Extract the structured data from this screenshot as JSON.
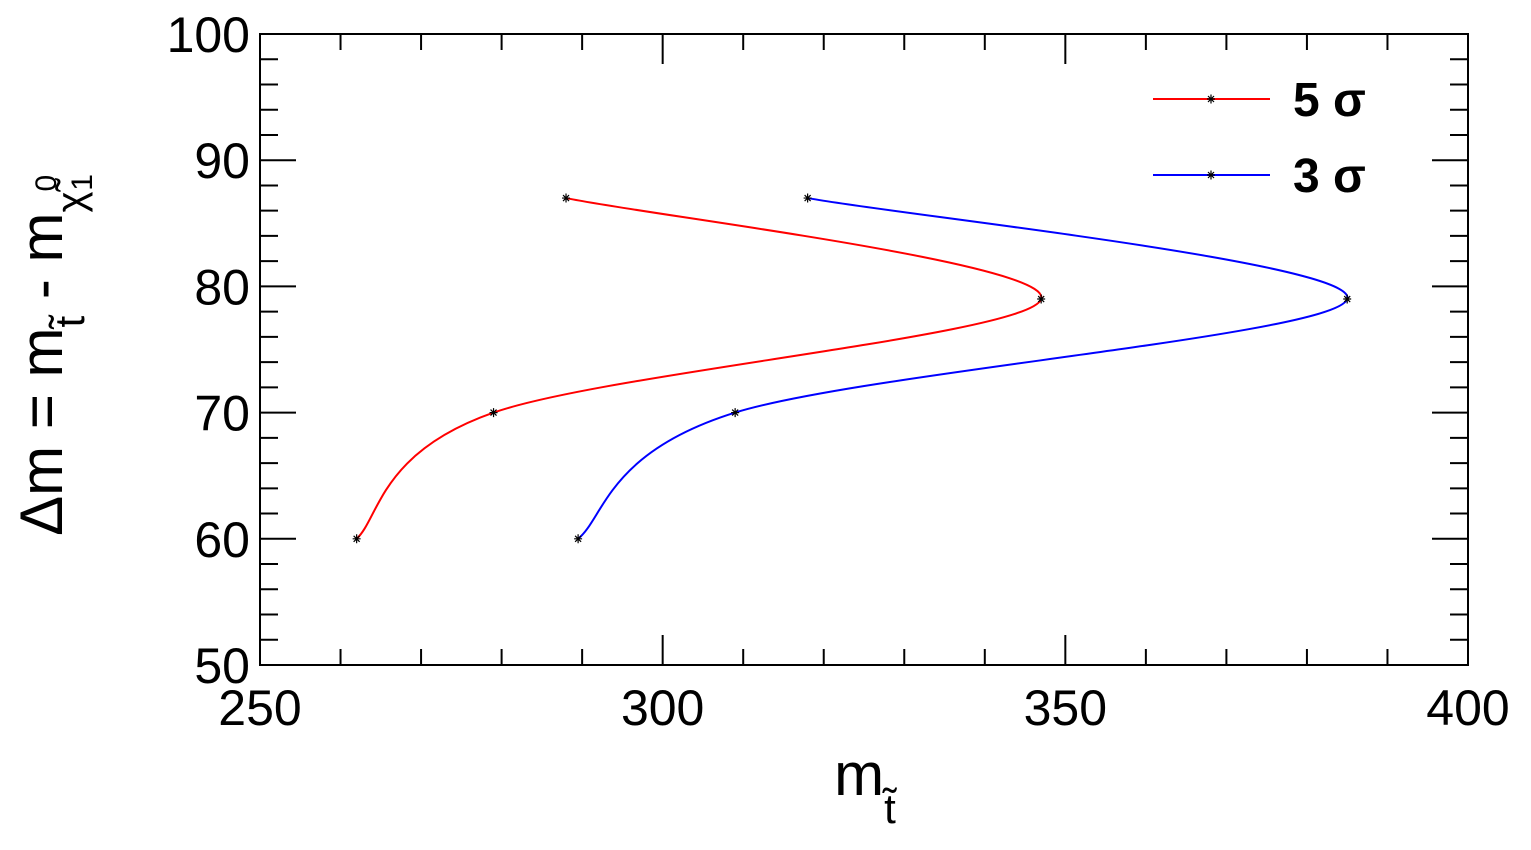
{
  "chart_data": {
    "type": "line",
    "xlabel": [
      "m",
      "t̃"
    ],
    "ylabel": [
      "Δm = m",
      "t̃",
      " - m",
      "χ̃",
      "0",
      "1"
    ],
    "xlim": [
      250,
      400
    ],
    "xticks": [
      250,
      300,
      350,
      400
    ],
    "ylim": [
      50,
      100
    ],
    "yticks": [
      50,
      60,
      70,
      80,
      90,
      100
    ],
    "legend": "upper right",
    "series": [
      {
        "name": "5 σ",
        "color": "#ff0000",
        "x": [
          262,
          279,
          347,
          288
        ],
        "values": [
          60,
          70,
          79,
          87
        ]
      },
      {
        "name": "3 σ",
        "color": "#0000ff",
        "x": [
          289.5,
          309,
          385,
          318
        ],
        "values": [
          60,
          70,
          79,
          87
        ]
      }
    ]
  }
}
